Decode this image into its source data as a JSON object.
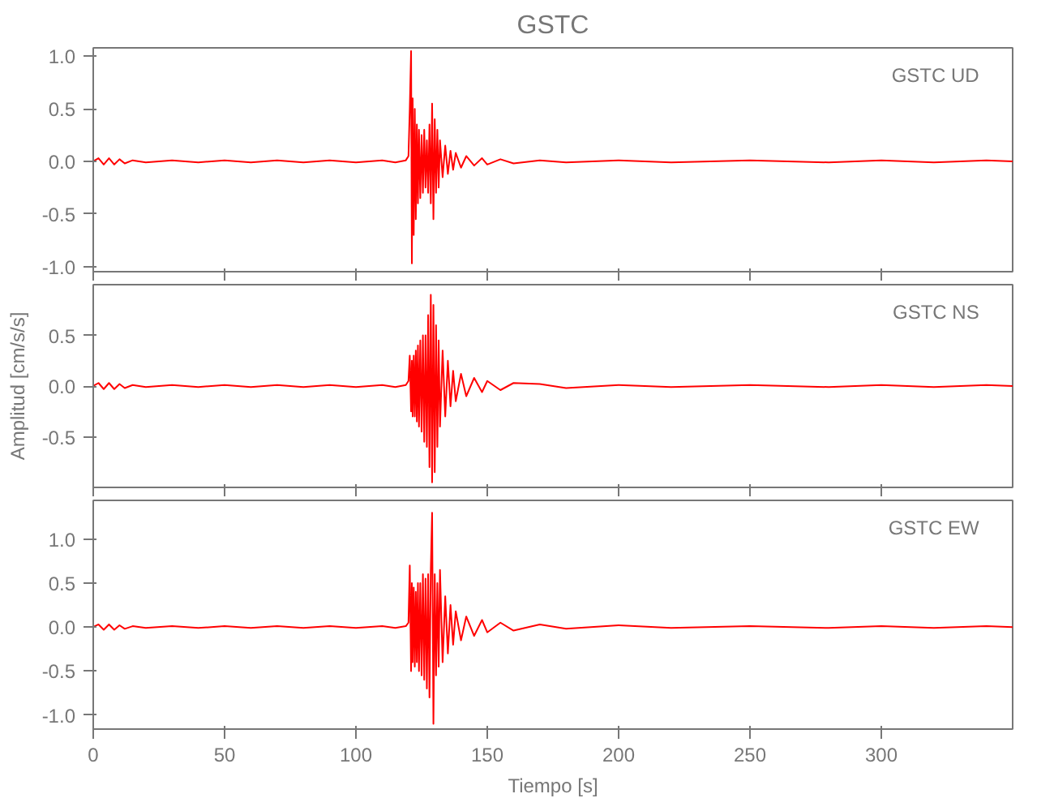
{
  "chart_data": [
    {
      "type": "line",
      "title": "GSTC",
      "annotations": [
        "GSTC   UD"
      ],
      "tick_labels": "y",
      "x": [
        0,
        2,
        4,
        6,
        8,
        10,
        12,
        15,
        20,
        30,
        40,
        50,
        60,
        70,
        80,
        90,
        100,
        110,
        115,
        119,
        120,
        120.5,
        121,
        121.3,
        121.6,
        122,
        122.4,
        122.8,
        123.2,
        123.6,
        124,
        124.5,
        125,
        125.5,
        126,
        126.5,
        127,
        127.5,
        128,
        128.5,
        129,
        129.5,
        130,
        130.5,
        131,
        131.5,
        132,
        133,
        134,
        135,
        136,
        137,
        138,
        140,
        142,
        145,
        148,
        150,
        155,
        160,
        170,
        180,
        200,
        220,
        250,
        280,
        300,
        320,
        340,
        350
      ],
      "series": [
        {
          "color": "#ff0000",
          "values": [
            0,
            0.03,
            -0.03,
            0.03,
            -0.03,
            0.02,
            -0.02,
            0.01,
            -0.01,
            0.01,
            -0.01,
            0.01,
            -0.01,
            0.01,
            -0.01,
            0.01,
            -0.01,
            0.01,
            -0.01,
            0.01,
            0.05,
            0.5,
            1.05,
            -0.97,
            0.6,
            -0.7,
            0.5,
            -0.55,
            0.35,
            -0.4,
            0.3,
            -0.35,
            0.25,
            -0.3,
            0.3,
            -0.25,
            0.2,
            -0.3,
            0.35,
            -0.4,
            0.55,
            -0.55,
            0.4,
            -0.3,
            0.3,
            -0.25,
            0.2,
            -0.15,
            0.15,
            -0.12,
            0.1,
            -0.08,
            0.08,
            -0.06,
            0.05,
            -0.04,
            0.03,
            -0.03,
            0.02,
            -0.02,
            0.01,
            -0.01,
            0.01,
            -0.01,
            0.01,
            -0.01,
            0.01,
            -0.01,
            0.01,
            0
          ]
        }
      ],
      "xlim": [
        0,
        350
      ],
      "xticks": [
        0,
        50,
        100,
        150,
        200,
        250,
        300
      ],
      "ylim": [
        -1.05,
        1.08
      ],
      "yticks": [
        {
          "value": -1,
          "label": "-1.0"
        },
        {
          "value": -0.5,
          "label": "-0.5"
        },
        {
          "value": 0,
          "label": "0.0"
        },
        {
          "value": 0.5,
          "label": "0.5"
        },
        {
          "value": 1,
          "label": "1.0"
        }
      ]
    },
    {
      "type": "line",
      "ylabel": "Amplitud [cm/s/s]",
      "annotations": [
        "GSTC   NS"
      ],
      "tick_labels": "y",
      "x": [
        0,
        2,
        4,
        6,
        8,
        10,
        12,
        15,
        20,
        30,
        40,
        50,
        60,
        70,
        80,
        90,
        100,
        110,
        115,
        119,
        120,
        120.5,
        121,
        121.3,
        121.6,
        122,
        122.4,
        122.8,
        123.2,
        123.6,
        124,
        124.5,
        125,
        125.5,
        126,
        126.5,
        127,
        127.5,
        128,
        128.5,
        129,
        129.5,
        130,
        130.5,
        131,
        131.5,
        132,
        133,
        134,
        135,
        136,
        137,
        138,
        140,
        142,
        145,
        148,
        150,
        155,
        160,
        170,
        180,
        200,
        220,
        250,
        280,
        300,
        320,
        340,
        350
      ],
      "series": [
        {
          "color": "#ff0000",
          "values": [
            0,
            0.03,
            -0.03,
            0.03,
            -0.03,
            0.02,
            -0.02,
            0.01,
            -0.01,
            0.01,
            -0.01,
            0.01,
            -0.01,
            0.01,
            -0.01,
            0.01,
            -0.01,
            0.01,
            -0.01,
            0.01,
            0.05,
            0.3,
            -0.25,
            0.25,
            -0.3,
            0.3,
            -0.3,
            0.35,
            -0.35,
            0.4,
            -0.4,
            0.45,
            -0.45,
            0.5,
            -0.55,
            0.5,
            -0.6,
            0.7,
            -0.8,
            0.9,
            -0.95,
            0.8,
            -0.85,
            0.6,
            -0.6,
            0.45,
            -0.4,
            0.35,
            -0.3,
            0.25,
            -0.2,
            0.15,
            -0.15,
            0.12,
            -0.1,
            0.08,
            -0.06,
            0.05,
            -0.04,
            0.03,
            0.02,
            -0.02,
            0.01,
            -0.01,
            0.01,
            -0.01,
            0.01,
            -0.01,
            0.01,
            0
          ]
        }
      ],
      "xlim": [
        0,
        350
      ],
      "xticks": [
        0,
        50,
        100,
        150,
        200,
        250,
        300
      ],
      "ylim": [
        -1.0,
        1.0
      ],
      "yticks": [
        {
          "value": -0.5,
          "label": "-0.5"
        },
        {
          "value": 0,
          "label": "0.0"
        },
        {
          "value": 0.5,
          "label": "0.5"
        }
      ]
    },
    {
      "type": "line",
      "xlabel": "Tiempo [s]",
      "annotations": [
        "GSTC   EW"
      ],
      "x": [
        0,
        2,
        4,
        6,
        8,
        10,
        12,
        15,
        20,
        30,
        40,
        50,
        60,
        70,
        80,
        90,
        100,
        110,
        115,
        119,
        120,
        120.5,
        121,
        121.3,
        121.6,
        122,
        122.4,
        122.8,
        123.2,
        123.6,
        124,
        124.5,
        125,
        125.5,
        126,
        126.5,
        127,
        127.5,
        128,
        128.5,
        129,
        129.5,
        130,
        130.5,
        131,
        131.5,
        132,
        133,
        134,
        135,
        136,
        137,
        138,
        140,
        142,
        145,
        148,
        150,
        155,
        160,
        170,
        180,
        200,
        220,
        250,
        280,
        300,
        320,
        340,
        350
      ],
      "series": [
        {
          "color": "#ff0000",
          "values": [
            0,
            0.03,
            -0.03,
            0.03,
            -0.03,
            0.02,
            -0.02,
            0.01,
            -0.01,
            0.01,
            -0.01,
            0.01,
            -0.01,
            0.01,
            -0.01,
            0.01,
            -0.01,
            0.01,
            -0.01,
            0.01,
            0.05,
            0.7,
            -0.5,
            0.5,
            -0.4,
            0.45,
            -0.45,
            0.4,
            -0.4,
            0.5,
            -0.5,
            0.5,
            -0.55,
            0.6,
            -0.6,
            0.55,
            -0.7,
            0.6,
            -0.8,
            0.65,
            1.3,
            -1.1,
            0.6,
            -0.55,
            0.5,
            -0.45,
            0.65,
            -0.4,
            0.35,
            -0.3,
            0.25,
            -0.2,
            0.18,
            -0.15,
            0.12,
            -0.1,
            0.08,
            -0.06,
            0.05,
            -0.04,
            0.03,
            -0.02,
            0.02,
            -0.01,
            0.01,
            -0.01,
            0.01,
            -0.01,
            0.01,
            0
          ]
        }
      ],
      "xlim": [
        0,
        350
      ],
      "xticks": [
        0,
        50,
        100,
        150,
        200,
        250,
        300
      ],
      "ylim": [
        -1.16,
        1.44
      ],
      "yticks": [
        {
          "value": -1,
          "label": "-1.0"
        },
        {
          "value": -0.5,
          "label": "-0.5"
        },
        {
          "value": 0,
          "label": "0.0"
        },
        {
          "value": 0.5,
          "label": "0.5"
        },
        {
          "value": 1,
          "label": "1.0"
        }
      ]
    }
  ]
}
